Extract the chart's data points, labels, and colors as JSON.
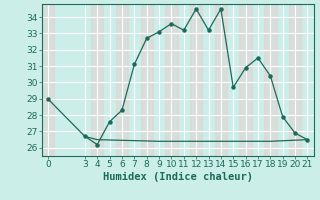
{
  "xlabel": "Humidex (Indice chaleur)",
  "x": [
    0,
    3,
    4,
    5,
    6,
    7,
    8,
    9,
    10,
    11,
    12,
    13,
    14,
    15,
    16,
    17,
    18,
    19,
    20,
    21
  ],
  "y": [
    29,
    26.7,
    26.2,
    27.6,
    28.3,
    31.1,
    32.7,
    33.1,
    33.6,
    33.2,
    34.5,
    33.2,
    34.5,
    29.7,
    30.9,
    31.5,
    30.4,
    27.9,
    26.9,
    26.5
  ],
  "y2_x": [
    3,
    4,
    9,
    18,
    21
  ],
  "y2_y": [
    26.7,
    26.5,
    26.4,
    26.4,
    26.5
  ],
  "line_color": "#1a6b5a",
  "bg_color": "#cceee8",
  "grid_color_major": "#ffffff",
  "grid_color_minor": "#e8c8c8",
  "tick_label_fontsize": 6.5,
  "xlabel_fontsize": 7.5,
  "ylim": [
    25.5,
    34.8
  ],
  "xlim": [
    -0.5,
    21.5
  ],
  "yticks": [
    26,
    27,
    28,
    29,
    30,
    31,
    32,
    33,
    34
  ],
  "xticks": [
    0,
    3,
    4,
    5,
    6,
    7,
    8,
    9,
    10,
    11,
    12,
    13,
    14,
    15,
    16,
    17,
    18,
    19,
    20,
    21
  ]
}
